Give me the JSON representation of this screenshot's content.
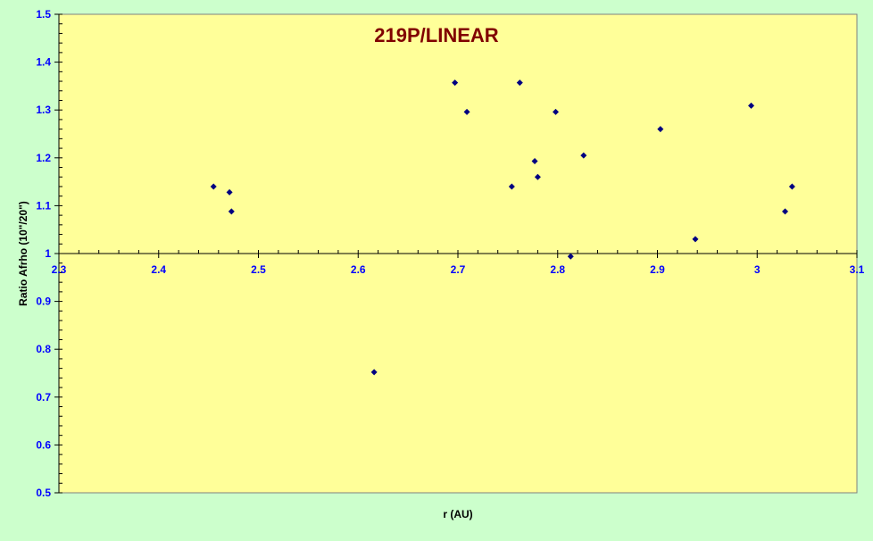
{
  "chart_data": {
    "type": "scatter",
    "title": "219P/LINEAR",
    "xlabel": "r (AU)",
    "ylabel": "Ratio Afrho (10\"/20\")",
    "xlim": [
      2.3,
      3.1
    ],
    "ylim": [
      0.5,
      1.5
    ],
    "x_ticks": [
      "2.3",
      "2.4",
      "2.5",
      "2.6",
      "2.7",
      "2.8",
      "2.9",
      "3",
      "3.1"
    ],
    "y_ticks": [
      "0.5",
      "0.6",
      "0.7",
      "0.8",
      "0.9",
      "1",
      "1.1",
      "1.2",
      "1.3",
      "1.4",
      "1.5"
    ],
    "x_axis_crosses_y": 1.0,
    "grid": false,
    "legend": "none",
    "colors": {
      "outer_background": "#ccffcc",
      "plot_background": "#ffff99",
      "title": "#800000",
      "tick_labels": "#0000ff",
      "axis_titles": "#000000",
      "markers": "#000080"
    },
    "series": [
      {
        "marker": "diamond",
        "points": [
          {
            "x": 2.455,
            "y": 1.14
          },
          {
            "x": 2.471,
            "y": 1.128
          },
          {
            "x": 2.473,
            "y": 1.088
          },
          {
            "x": 2.616,
            "y": 0.752
          },
          {
            "x": 2.697,
            "y": 1.357
          },
          {
            "x": 2.709,
            "y": 1.296
          },
          {
            "x": 2.754,
            "y": 1.14
          },
          {
            "x": 2.762,
            "y": 1.357
          },
          {
            "x": 2.777,
            "y": 1.193
          },
          {
            "x": 2.78,
            "y": 1.16
          },
          {
            "x": 2.798,
            "y": 1.296
          },
          {
            "x": 2.813,
            "y": 0.994
          },
          {
            "x": 2.826,
            "y": 1.205
          },
          {
            "x": 2.903,
            "y": 1.26
          },
          {
            "x": 2.938,
            "y": 1.03
          },
          {
            "x": 2.994,
            "y": 1.309
          },
          {
            "x": 3.028,
            "y": 1.088
          },
          {
            "x": 3.035,
            "y": 1.14
          }
        ]
      }
    ]
  }
}
